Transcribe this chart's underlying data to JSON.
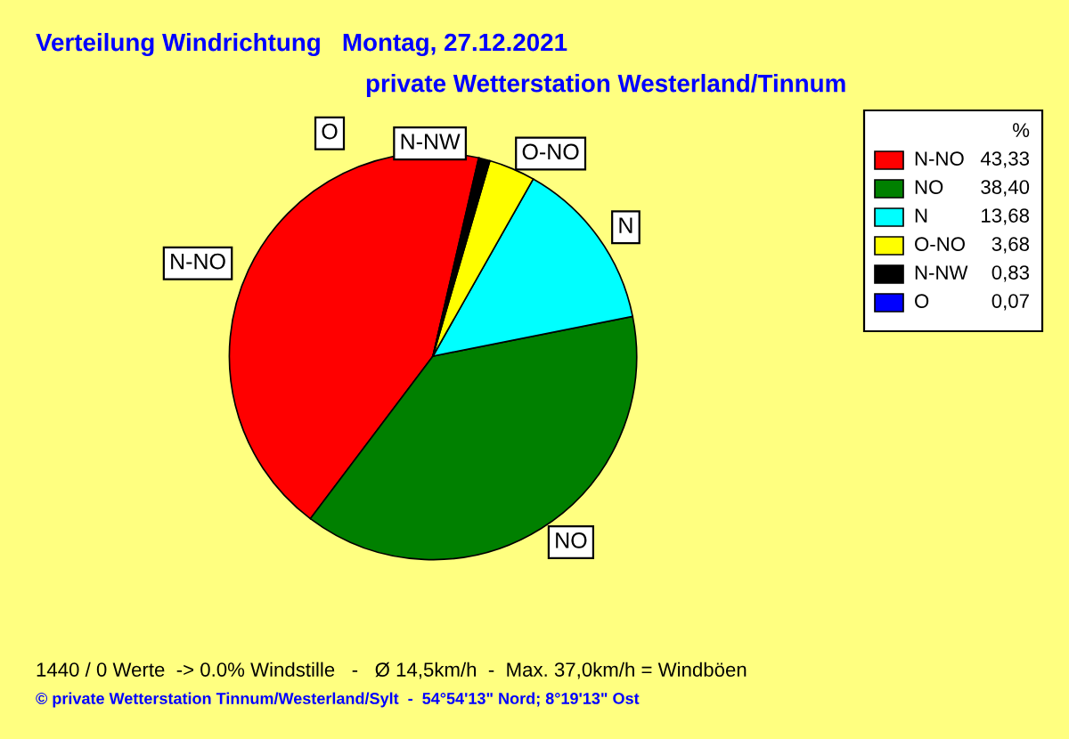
{
  "chart_data": {
    "type": "pie",
    "title": "Verteilung Windrichtung   Montag, 27.12.2021",
    "subtitle": "private Wetterstation Westerland/Tinnum",
    "categories": [
      "N-NO",
      "NO",
      "N",
      "O-NO",
      "N-NW",
      "O"
    ],
    "values": [
      43.33,
      38.4,
      13.68,
      3.68,
      0.83,
      0.07
    ],
    "value_labels": [
      "43,33",
      "38,40",
      "13,68",
      "3,68",
      "0,83",
      "0,07"
    ],
    "colors": [
      "#ff0000",
      "#008000",
      "#00ffff",
      "#ffff00",
      "#000000",
      "#0000ff"
    ],
    "legend_title": "%",
    "legend": "top right",
    "annotations": [
      "1440 / 0 Werte  -> 0.0% Windstille   -   Ø 14,5km/h  -  Max. 37,0km/h = Windböen",
      "© private Wetterstation Tinnum/Westerland/Sylt  -  54°54'13\" Nord; 8°19'13\" Ost"
    ]
  }
}
